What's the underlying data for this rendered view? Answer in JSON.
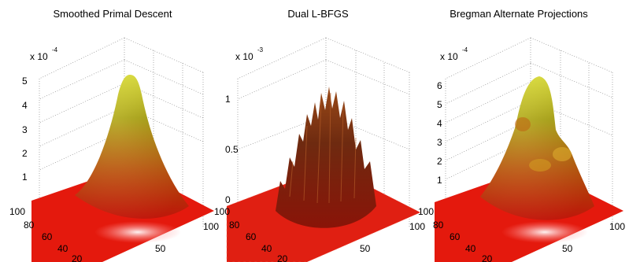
{
  "chart_data": [
    {
      "type": "surface",
      "title": "Smoothed Primal Descent",
      "multiplier_base": "x 10",
      "multiplier_exponent": "-4",
      "z_ticks": [
        1,
        2,
        3,
        4,
        5
      ],
      "z_max": 5.6,
      "x_ticks": [
        20,
        40,
        60,
        80,
        100
      ],
      "y_ticks": [
        50,
        100
      ],
      "grid": true,
      "colormap": "red-to-yellow",
      "surface": "single smooth peak"
    },
    {
      "type": "surface",
      "title": "Dual L-BFGS",
      "multiplier_base": "x 10",
      "multiplier_exponent": "-3",
      "z_ticks": [
        0,
        0.5,
        1
      ],
      "z_max": 0.75,
      "x_ticks": [
        20,
        40,
        60,
        80,
        100
      ],
      "y_ticks": [
        50,
        100
      ],
      "grid": true,
      "colormap": "dark red",
      "surface": "noisy spiky mound"
    },
    {
      "type": "surface",
      "title": "Bregman Alternate Projections",
      "multiplier_base": "x 10",
      "multiplier_exponent": "-4",
      "z_ticks": [
        1,
        2,
        3,
        4,
        5,
        6
      ],
      "z_max": 6.6,
      "x_ticks": [
        20,
        40,
        60,
        80,
        100
      ],
      "y_ticks": [
        50,
        100
      ],
      "grid": true,
      "colormap": "red-to-yellow",
      "surface": "multi-modal peaks"
    }
  ]
}
